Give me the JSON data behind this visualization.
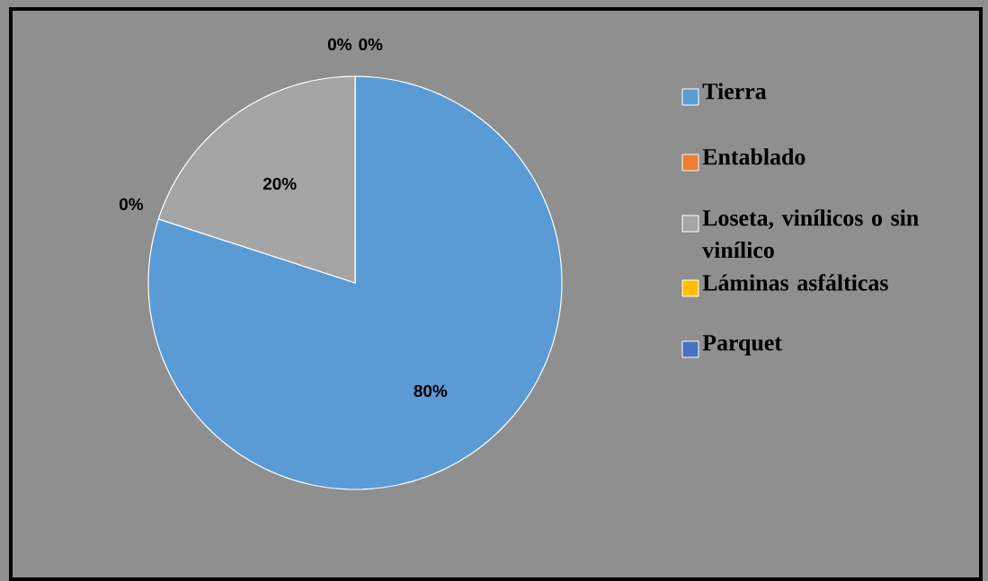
{
  "chart_data": {
    "type": "pie",
    "categories": [
      "Tierra",
      "Entablado",
      "Loseta, vinílicos o sin vinílico",
      "Láminas asfálticas",
      "Parquet"
    ],
    "values": [
      80,
      0,
      20,
      0,
      0
    ],
    "colors": [
      "#5b9bd5",
      "#ed7d31",
      "#a5a5a5",
      "#ffc000",
      "#4472c4"
    ],
    "value_labels": [
      "80%",
      "0%",
      "20%",
      "0%",
      "0%"
    ],
    "legend": "right"
  }
}
